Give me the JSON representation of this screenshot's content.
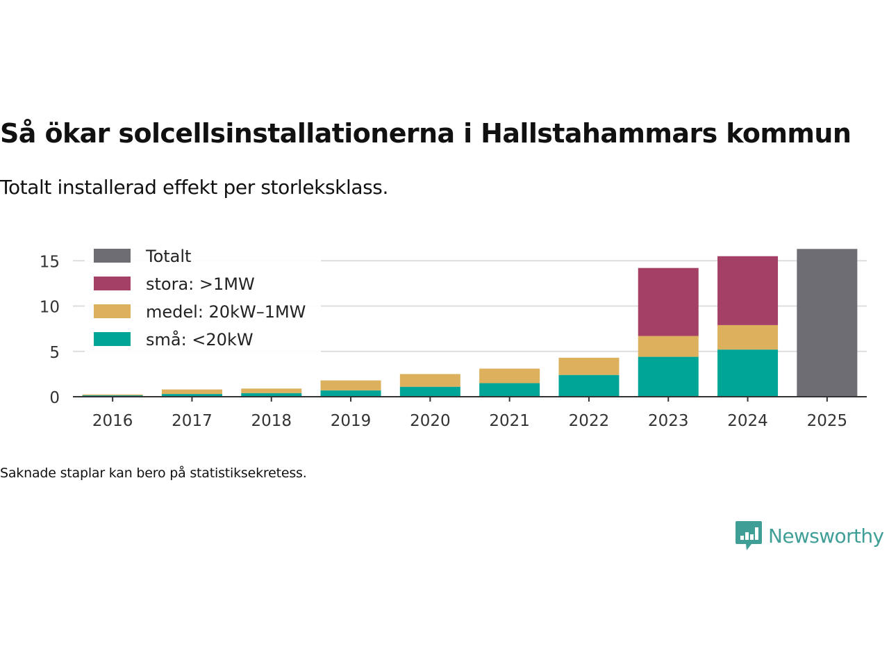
{
  "header": {
    "title": "Så ökar solcellsinstallationerna i Hallstahammars kommun",
    "subtitle": "Totalt installerad effekt per storleksklass."
  },
  "footnote": "Saknade staplar kan bero på statistiksekretess.",
  "brand": {
    "name": "Newsworthy",
    "icon": "newsworthy-logo-icon"
  },
  "colors": {
    "sma": "#00a598",
    "medel": "#dcb05d",
    "stora": "#a44066",
    "totalt": "#6e6d74",
    "grid": "#dddddd",
    "axis": "#333333",
    "brand": "#3f9f96"
  },
  "chart_data": {
    "type": "bar",
    "stacked": true,
    "categories": [
      "2016",
      "2017",
      "2018",
      "2019",
      "2020",
      "2021",
      "2022",
      "2023",
      "2024",
      "2025"
    ],
    "series": [
      {
        "key": "sma",
        "name": "små: <20kW",
        "values": [
          0.15,
          0.3,
          0.4,
          0.7,
          1.1,
          1.5,
          2.4,
          4.4,
          5.2,
          0
        ]
      },
      {
        "key": "medel",
        "name": "medel: 20kW–1MW",
        "values": [
          0.1,
          0.5,
          0.5,
          1.1,
          1.4,
          1.6,
          1.9,
          2.3,
          2.7,
          0
        ]
      },
      {
        "key": "stora",
        "name": "stora: >1MW",
        "values": [
          0,
          0,
          0,
          0,
          0,
          0,
          0,
          7.5,
          7.6,
          0
        ]
      },
      {
        "key": "totalt",
        "name": "Totalt",
        "values": [
          0,
          0,
          0,
          0,
          0,
          0,
          0,
          0,
          0,
          16.3
        ]
      }
    ],
    "legend_order": [
      "totalt",
      "stora",
      "medel",
      "sma"
    ],
    "legend_position": "top-left",
    "title": "Så ökar solcellsinstallationerna i Hallstahammars kommun",
    "xlabel": "",
    "ylabel": "",
    "ylim": [
      0,
      17
    ],
    "yticks": [
      0,
      5,
      10,
      15
    ],
    "grid": true
  }
}
